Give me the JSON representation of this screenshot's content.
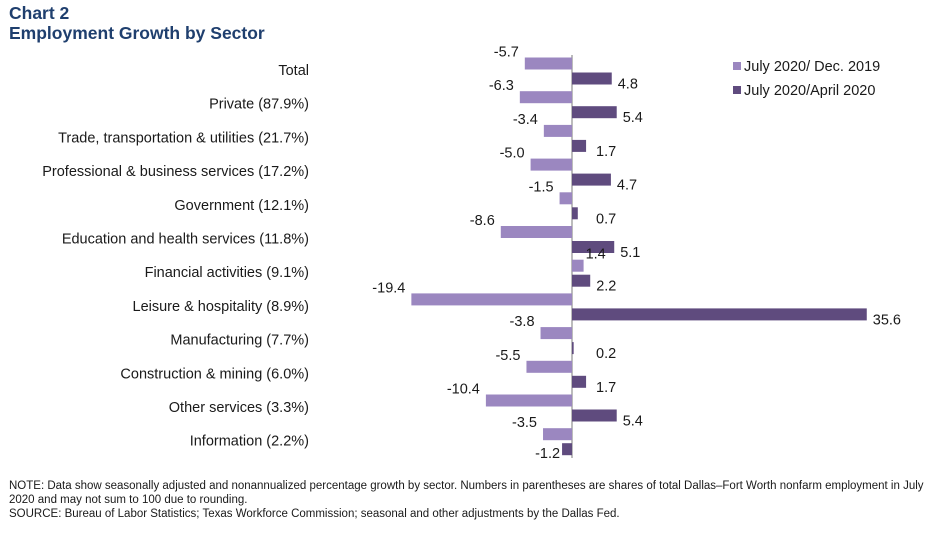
{
  "header": {
    "chart_number": "Chart 2",
    "title": "Employment Growth by Sector"
  },
  "chart_data": {
    "type": "bar",
    "orientation": "horizontal",
    "title": "Employment Growth by Sector",
    "xlabel": "",
    "ylabel": "",
    "xlim": [
      -20,
      36
    ],
    "grid": false,
    "legend_position": "top-right",
    "categories": [
      "Total",
      "Private (87.9%)",
      "Trade, transportation & utilities (21.7%)",
      "Professional & business services (17.2%)",
      "Government (12.1%)",
      "Education and health services (11.8%)",
      "Financial activities (9.1%)",
      "Leisure & hospitality (8.9%)",
      "Manufacturing (7.7%)",
      "Construction & mining (6.0%)",
      "Other services (3.3%)",
      "Information (2.2%)"
    ],
    "series": [
      {
        "name": "July 2020/ Dec. 2019",
        "color": "#9b87c0",
        "values": [
          -5.7,
          -6.3,
          -3.4,
          -5.0,
          -1.5,
          -8.6,
          1.4,
          -19.4,
          -3.8,
          -5.5,
          -10.4,
          -3.5
        ],
        "labels": [
          "-5.7",
          "-6.3",
          "-3.4",
          "-5.0",
          "-1.5",
          "-8.6",
          "1.4",
          "-19.4",
          "-3.8",
          "-5.5",
          "-10.4",
          "-3.5"
        ]
      },
      {
        "name": "July 2020/April 2020",
        "color": "#5f4b7e",
        "values": [
          4.8,
          5.4,
          1.7,
          4.7,
          0.7,
          5.1,
          2.2,
          35.6,
          0.2,
          1.7,
          5.4,
          -1.2
        ],
        "labels": [
          "4.8",
          "5.4",
          "1.7",
          "4.7",
          "0.7",
          "5.1",
          "2.2",
          "35.6",
          "0.2",
          "1.7",
          "5.4",
          "-1.2"
        ]
      }
    ]
  },
  "footer": {
    "note": "NOTE: Data show seasonally adjusted and nonannualized percentage growth by sector. Numbers in parentheses are shares of total Dallas–Fort Worth nonfarm employment in July 2020 and may not sum to 100 due to rounding.",
    "source": "SOURCE: Bureau of Labor Statistics; Texas Workforce Commission; seasonal and other adjustments by the Dallas Fed."
  }
}
